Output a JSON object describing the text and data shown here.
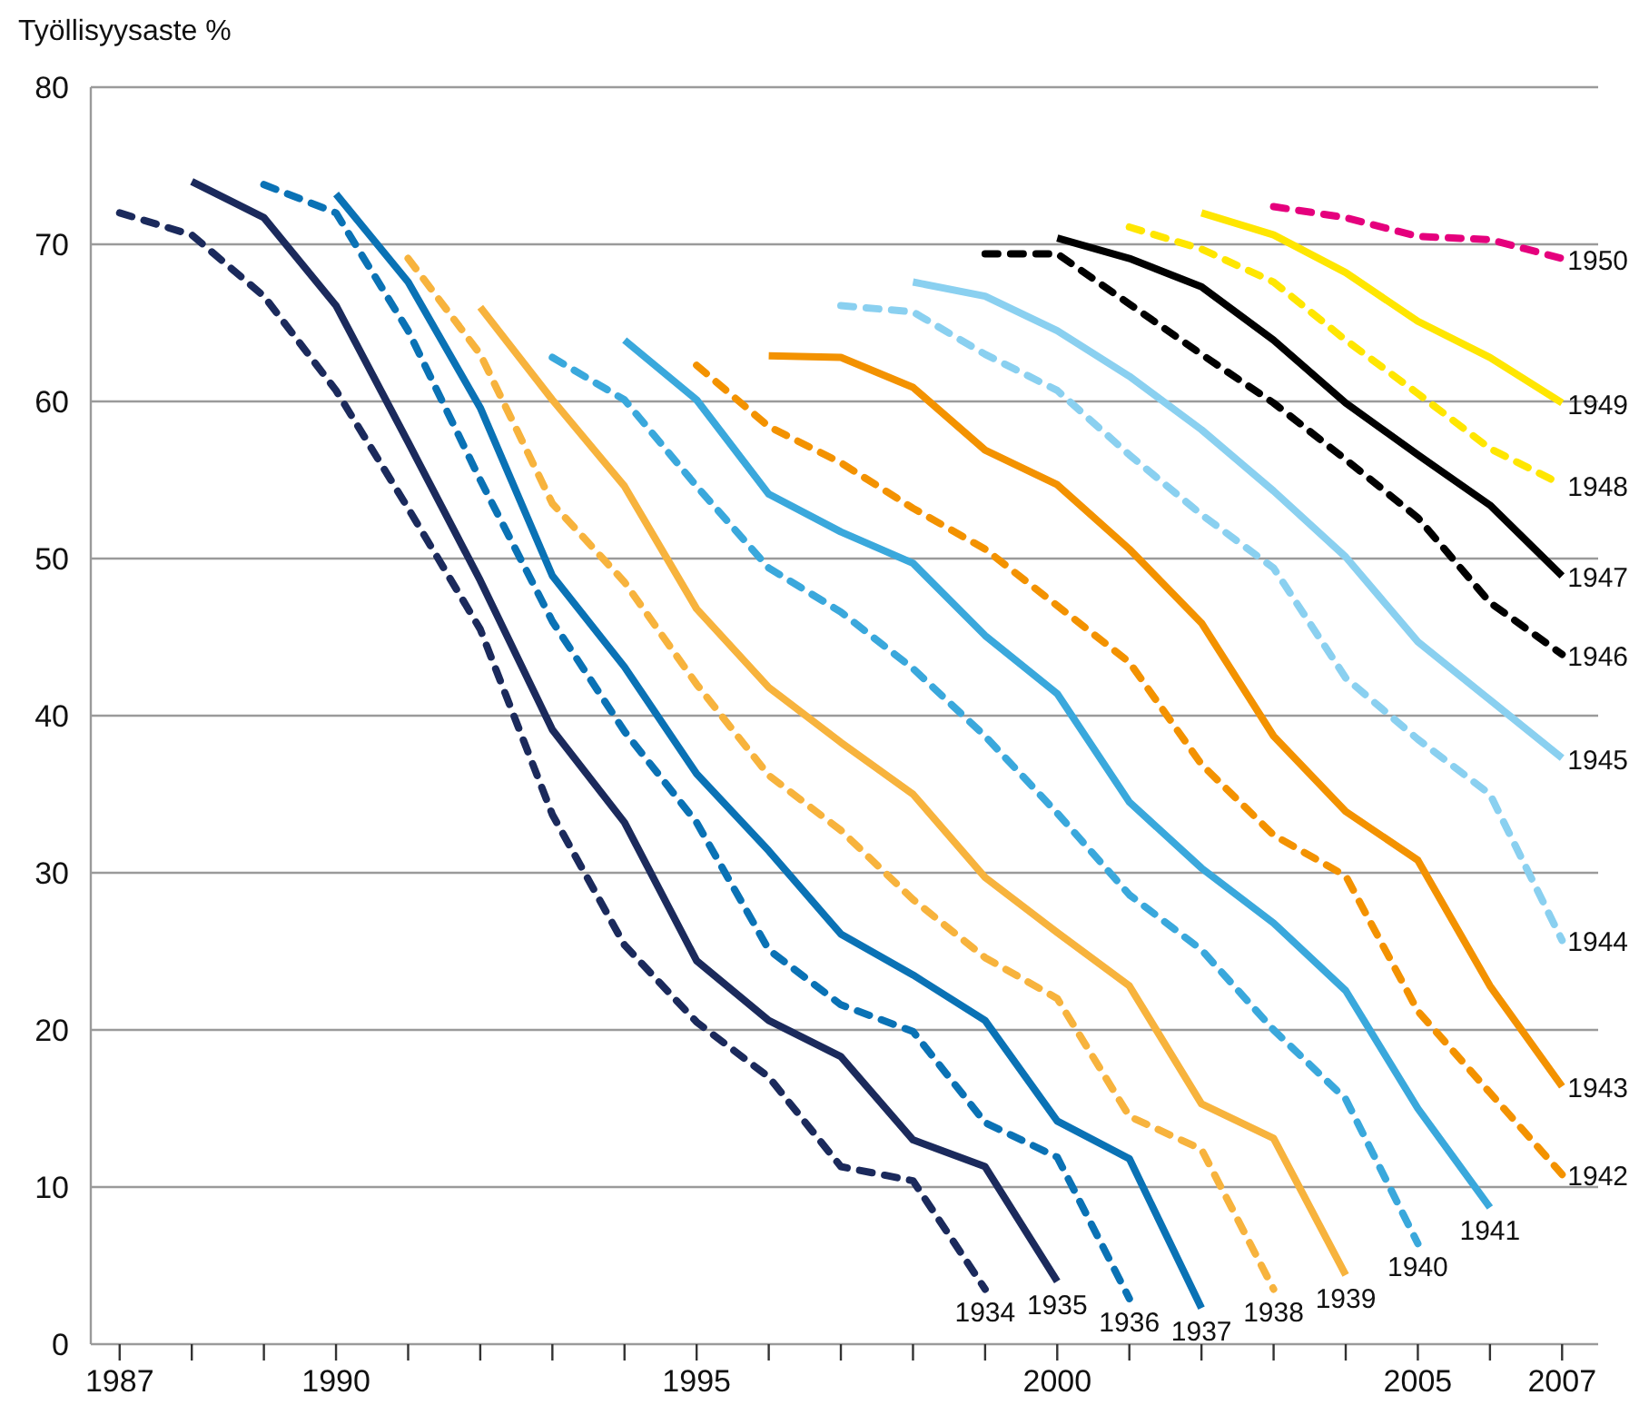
{
  "chart_data": {
    "type": "line",
    "ylabel": "Työllisyysaste %",
    "xlim": [
      1986.6,
      2007.5
    ],
    "ylim": [
      0,
      80
    ],
    "xticks": [
      1987,
      {
        "value": 1988,
        "label": null
      },
      {
        "value": 1989,
        "label": null
      },
      1990,
      {
        "value": 1991,
        "label": null
      },
      {
        "value": 1992,
        "label": null
      },
      {
        "value": 1993,
        "label": null
      },
      {
        "value": 1994,
        "label": null
      },
      1995,
      {
        "value": 1996,
        "label": null
      },
      {
        "value": 1997,
        "label": null
      },
      {
        "value": 1998,
        "label": null
      },
      {
        "value": 1999,
        "label": null
      },
      2000,
      {
        "value": 2001,
        "label": null
      },
      {
        "value": 2002,
        "label": null
      },
      {
        "value": 2003,
        "label": null
      },
      {
        "value": 2004,
        "label": null
      },
      2005,
      {
        "value": 2006,
        "label": null
      },
      2007
    ],
    "yticks": [
      0,
      10,
      20,
      30,
      40,
      50,
      60,
      70,
      80
    ],
    "grid": "y",
    "marker": "none",
    "series": [
      {
        "name": "1934",
        "color": "#1b2a5c",
        "line_style": "dashed",
        "x": [
          1987,
          1988,
          1989,
          1990,
          1991,
          1992,
          1993,
          1994,
          1995,
          1996,
          1997,
          1998,
          1999
        ],
        "values": [
          72.0,
          70.6,
          66.7,
          60.7,
          53.2,
          45.5,
          33.7,
          25.4,
          20.5,
          17.0,
          11.3,
          10.4,
          3.5
        ]
      },
      {
        "name": "1935",
        "color": "#1b2a5c",
        "line_style": "solid",
        "x": [
          1988,
          1989,
          1990,
          1991,
          1992,
          1993,
          1994,
          1995,
          1996,
          1997,
          1998,
          1999,
          2000
        ],
        "values": [
          74.0,
          71.7,
          66.1,
          57.4,
          48.6,
          39.1,
          33.2,
          24.4,
          20.6,
          18.3,
          13.0,
          11.3,
          4.0
        ]
      },
      {
        "name": "1936",
        "color": "#0a72b5",
        "line_style": "dashed",
        "x": [
          1989,
          1990,
          1991,
          1992,
          1993,
          1994,
          1995,
          1996,
          1997,
          1998,
          1999,
          2000,
          2001
        ],
        "values": [
          73.8,
          72.0,
          64.5,
          55.0,
          46.0,
          39.0,
          33.2,
          25.1,
          21.6,
          19.9,
          14.1,
          11.9,
          2.9
        ]
      },
      {
        "name": "1937",
        "color": "#0a72b5",
        "line_style": "solid",
        "x": [
          1990,
          1991,
          1992,
          1993,
          1994,
          1995,
          1996,
          1997,
          1998,
          1999,
          2000,
          2001,
          2002
        ],
        "values": [
          73.2,
          67.6,
          59.6,
          48.9,
          43.1,
          36.3,
          31.4,
          26.1,
          23.5,
          20.6,
          14.2,
          11.8,
          2.3
        ]
      },
      {
        "name": "1938",
        "color": "#f7b33d",
        "line_style": "dashed",
        "x": [
          1991,
          1992,
          1993,
          1994,
          1995,
          1996,
          1997,
          1998,
          1999,
          2000,
          2001,
          2002,
          2003
        ],
        "values": [
          69.1,
          63.0,
          53.5,
          48.5,
          42.0,
          36.2,
          32.7,
          28.3,
          24.6,
          22.0,
          14.5,
          12.4,
          3.5
        ]
      },
      {
        "name": "1939",
        "color": "#f7b33d",
        "line_style": "solid",
        "x": [
          1992,
          1993,
          1994,
          1995,
          1996,
          1997,
          1998,
          1999,
          2000,
          2001,
          2002,
          2003,
          2004
        ],
        "values": [
          66.0,
          60.1,
          54.6,
          46.8,
          41.8,
          38.3,
          35.0,
          29.7,
          26.2,
          22.8,
          15.3,
          13.1,
          4.4
        ]
      },
      {
        "name": "1940",
        "color": "#3aa8dc",
        "line_style": "dashed",
        "x": [
          1993,
          1994,
          1995,
          1996,
          1997,
          1998,
          1999,
          2000,
          2001,
          2002,
          2003,
          2004,
          2005
        ],
        "values": [
          62.8,
          60.1,
          54.6,
          49.4,
          46.6,
          43.0,
          38.7,
          33.8,
          28.6,
          25.1,
          20.0,
          15.6,
          6.4
        ]
      },
      {
        "name": "1941",
        "color": "#3aa8dc",
        "line_style": "solid",
        "x": [
          1994,
          1995,
          1996,
          1997,
          1998,
          1999,
          2000,
          2001,
          2002,
          2003,
          2004,
          2005,
          2006
        ],
        "values": [
          63.9,
          60.1,
          54.1,
          51.7,
          49.7,
          45.1,
          41.4,
          34.5,
          30.3,
          26.8,
          22.5,
          15.0,
          8.7
        ]
      },
      {
        "name": "1942",
        "color": "#f39200",
        "line_style": "dashed",
        "x": [
          1995,
          1996,
          1997,
          1998,
          1999,
          2000,
          2001,
          2002,
          2003,
          2004,
          2005,
          2006,
          2007
        ],
        "values": [
          62.3,
          58.4,
          56.1,
          53.2,
          50.6,
          47.0,
          43.4,
          36.9,
          32.4,
          29.8,
          21.2,
          16.0,
          10.8
        ]
      },
      {
        "name": "1943",
        "color": "#f39200",
        "line_style": "solid",
        "x": [
          1996,
          1997,
          1998,
          1999,
          2000,
          2001,
          2002,
          2003,
          2004,
          2005,
          2006,
          2007
        ],
        "values": [
          62.9,
          62.8,
          60.9,
          56.9,
          54.7,
          50.6,
          45.9,
          38.7,
          33.9,
          30.8,
          22.8,
          16.4
        ]
      },
      {
        "name": "1944",
        "color": "#8ad0f0",
        "line_style": "dashed",
        "x": [
          1997,
          1998,
          1999,
          2000,
          2001,
          2002,
          2003,
          2004,
          2005,
          2006,
          2007
        ],
        "values": [
          66.1,
          65.7,
          63.0,
          60.7,
          56.6,
          52.8,
          49.4,
          42.4,
          38.5,
          35.0,
          25.7
        ]
      },
      {
        "name": "1945",
        "color": "#8ad0f0",
        "line_style": "solid",
        "x": [
          1998,
          1999,
          2000,
          2001,
          2002,
          2003,
          2004,
          2005,
          2006,
          2007
        ],
        "values": [
          67.6,
          66.7,
          64.5,
          61.6,
          58.2,
          54.3,
          50.1,
          44.7,
          41.0,
          37.3
        ]
      },
      {
        "name": "1946",
        "color": "#000000",
        "line_style": "dashed",
        "x": [
          1999,
          2000,
          2001,
          2002,
          2003,
          2004,
          2005,
          2006,
          2007
        ],
        "values": [
          69.4,
          69.4,
          66.2,
          63.0,
          59.9,
          56.3,
          52.6,
          47.2,
          43.9
        ]
      },
      {
        "name": "1947",
        "color": "#000000",
        "line_style": "solid",
        "x": [
          2000,
          2001,
          2002,
          2003,
          2004,
          2005,
          2006,
          2007
        ],
        "values": [
          70.4,
          69.1,
          67.3,
          63.9,
          59.9,
          56.6,
          53.4,
          48.9
        ]
      },
      {
        "name": "1948",
        "color": "#ffe600",
        "line_style": "dashed",
        "x": [
          2001,
          2002,
          2003,
          2004,
          2005,
          2006,
          2007
        ],
        "values": [
          71.1,
          69.7,
          67.6,
          63.9,
          60.5,
          57.0,
          54.7
        ]
      },
      {
        "name": "1949",
        "color": "#ffe600",
        "line_style": "solid",
        "x": [
          2002,
          2003,
          2004,
          2005,
          2006,
          2007
        ],
        "values": [
          72.0,
          70.6,
          68.2,
          65.1,
          62.8,
          59.9
        ]
      },
      {
        "name": "1950",
        "color": "#e5007d",
        "line_style": "dashed",
        "x": [
          2003,
          2004,
          2005,
          2006,
          2007
        ],
        "values": [
          72.4,
          71.7,
          70.5,
          70.3,
          69.1
        ]
      }
    ]
  }
}
